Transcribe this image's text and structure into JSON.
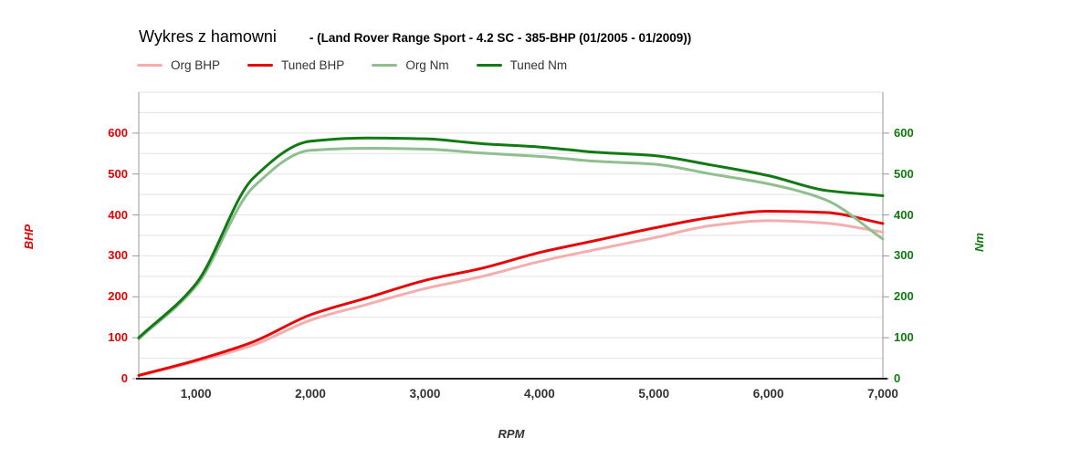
{
  "header": {
    "title": "Wykres z hamowni",
    "subtitle": "- (Land Rover Range Sport - 4.2 SC - 385-BHP (01/2005 - 01/2009))"
  },
  "colors": {
    "org_bhp": "#f5aeae",
    "tuned_bhp": "#e60808",
    "org_nm": "#8fbe8f",
    "tuned_nm": "#117a14",
    "left_axis_text": "#e60000",
    "right_axis_text": "#0e7a0e",
    "x_axis_text": "#333333",
    "gridline": "#e3e3e3",
    "plot_border": "#999999",
    "axis_line": "#222222"
  },
  "chart_data": {
    "type": "line",
    "title": "Wykres z hamowni - (Land Rover Range Sport - 4.2 SC - 385-BHP (01/2005 - 01/2009))",
    "xlabel": "RPM",
    "ylabel_left": "BHP",
    "ylabel_right": "Nm",
    "xlim": [
      500,
      7000
    ],
    "ylim": [
      0,
      700
    ],
    "grid_step": 50,
    "legend_position": "top-left",
    "x": [
      500,
      1000,
      1500,
      2000,
      2500,
      3000,
      3500,
      4000,
      4500,
      5000,
      5500,
      6000,
      6500,
      7000
    ],
    "x_ticks": [
      {
        "v": 1000,
        "label": "1,000"
      },
      {
        "v": 2000,
        "label": "2,000"
      },
      {
        "v": 3000,
        "label": "3,000"
      },
      {
        "v": 4000,
        "label": "4,000"
      },
      {
        "v": 5000,
        "label": "5,000"
      },
      {
        "v": 6000,
        "label": "6,000"
      },
      {
        "v": 7000,
        "label": "7,000"
      }
    ],
    "y_ticks": [
      0,
      100,
      200,
      300,
      400,
      500,
      600
    ],
    "series": [
      {
        "id": "org_bhp",
        "name": "Org BHP",
        "axis": "left",
        "color": "#f5aeae",
        "values": [
          7,
          42,
          82,
          143,
          182,
          220,
          250,
          286,
          316,
          344,
          374,
          386,
          380,
          358
        ]
      },
      {
        "id": "tuned_bhp",
        "name": "Tuned BHP",
        "axis": "left",
        "color": "#e60808",
        "values": [
          8,
          45,
          90,
          156,
          198,
          240,
          270,
          308,
          338,
          368,
          394,
          409,
          406,
          379
        ]
      },
      {
        "id": "org_nm",
        "name": "Org Nm",
        "axis": "right",
        "color": "#8fbe8f",
        "values": [
          97,
          226,
          468,
          558,
          563,
          561,
          551,
          543,
          531,
          524,
          500,
          476,
          437,
          341
        ]
      },
      {
        "id": "tuned_nm",
        "name": "Tuned Nm",
        "axis": "right",
        "color": "#117a14",
        "values": [
          100,
          232,
          490,
          580,
          588,
          586,
          574,
          566,
          553,
          545,
          522,
          496,
          460,
          447
        ]
      }
    ]
  }
}
